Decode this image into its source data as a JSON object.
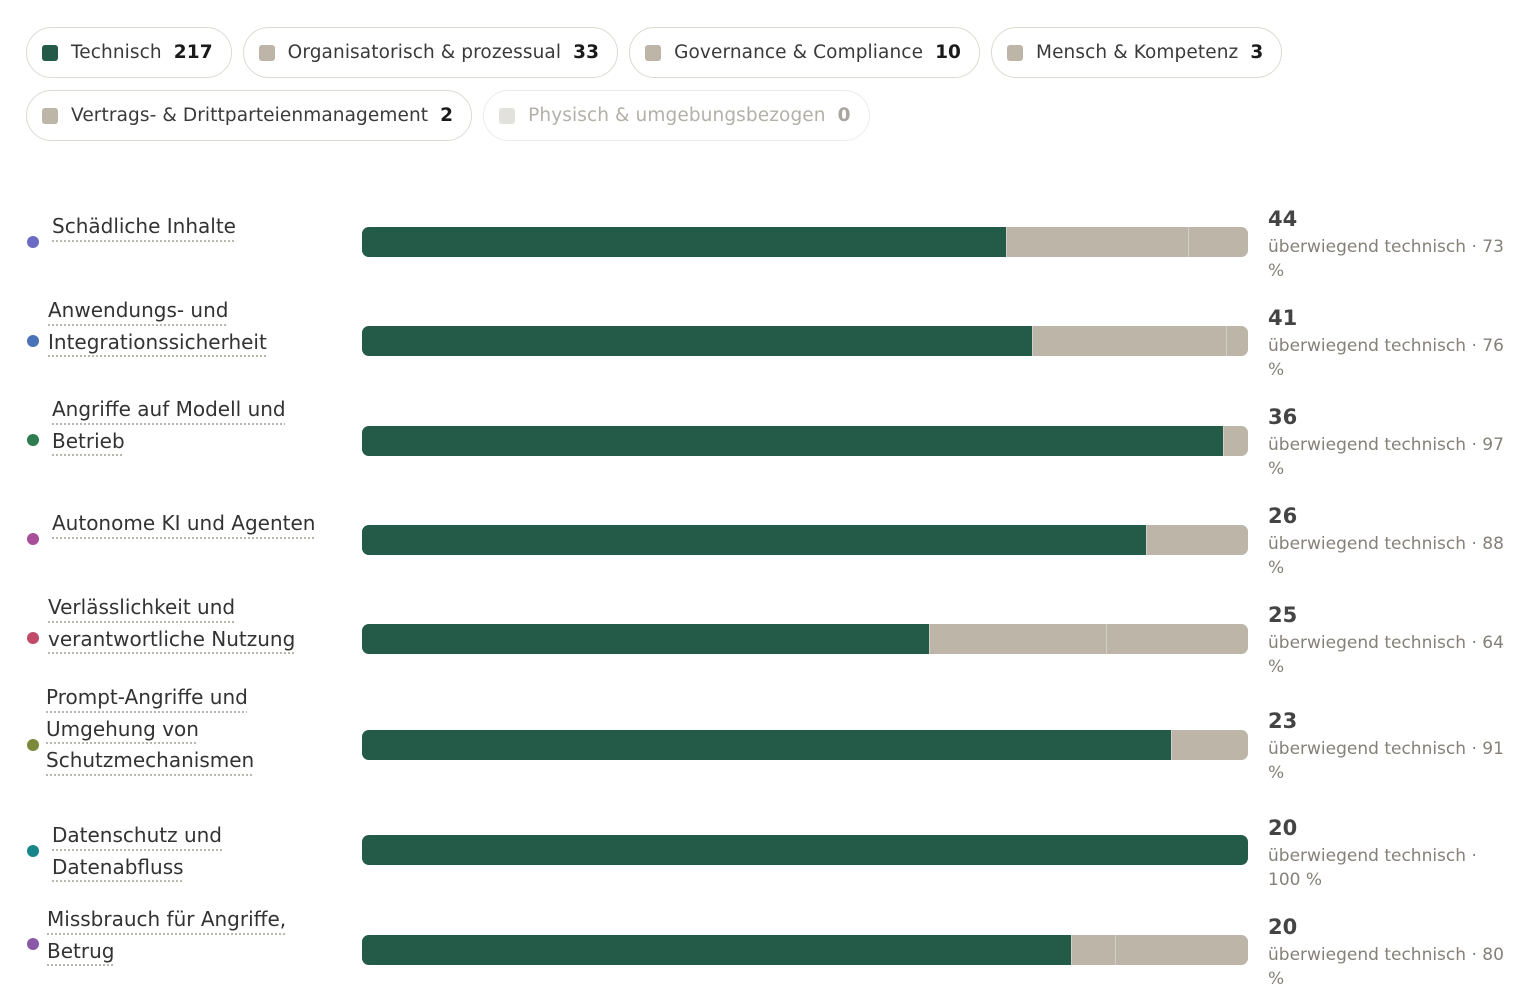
{
  "categories": [
    {
      "label": "Technisch",
      "count": "217",
      "color": "#235a48",
      "active": true
    },
    {
      "label": "Organisatorisch & prozessual",
      "count": "33",
      "color": "#bdb6a8",
      "active": true
    },
    {
      "label": "Governance & Compliance",
      "count": "10",
      "color": "#bdb6a8",
      "active": true
    },
    {
      "label": "Mensch & Kompetenz",
      "count": "3",
      "color": "#bdb6a8",
      "active": true
    },
    {
      "label": "Vertrags- & Drittparteienmanagement",
      "count": "2",
      "color": "#bdb6a8",
      "active": true
    },
    {
      "label": "Physisch & umgebungsbezogen",
      "count": "0",
      "color": "#e3e1dc",
      "active": false
    }
  ],
  "chart_data": {
    "type": "bar",
    "orientation": "horizontal",
    "stacked": true,
    "normalized": true,
    "series_colors": {
      "Technisch": "#235a48",
      "other": "#bdb6a8"
    },
    "rows": [
      {
        "label": "Schädliche Inhalte",
        "dot_color": "#6b6bc4",
        "total": "44",
        "desc": "überwiegend technisch · 73 %",
        "segments": [
          32,
          9,
          3
        ]
      },
      {
        "label": "Anwendungs- und Integrationssicherheit",
        "dot_color": "#4a72b8",
        "total": "41",
        "desc": "überwiegend technisch · 76 %",
        "segments": [
          31,
          9,
          1
        ]
      },
      {
        "label": "Angriffe auf Modell und Betrieb",
        "dot_color": "#2e7d4f",
        "total": "36",
        "desc": "überwiegend technisch · 97 %",
        "segments": [
          35,
          1
        ]
      },
      {
        "label": "Autonome KI und Agenten",
        "dot_color": "#a84f9a",
        "total": "26",
        "desc": "überwiegend technisch · 88 %",
        "segments": [
          23,
          3
        ]
      },
      {
        "label": "Verlässlichkeit und verantwortliche Nutzung",
        "dot_color": "#c04a68",
        "total": "25",
        "desc": "überwiegend technisch · 64 %",
        "segments": [
          16,
          5,
          4
        ]
      },
      {
        "label": "Prompt-Angriffe und Umgehung von Schutzmechanismen",
        "dot_color": "#7a8a3a",
        "total": "23",
        "desc": "überwiegend technisch · 91 %",
        "segments": [
          21,
          2
        ]
      },
      {
        "label": "Datenschutz und Datenabfluss",
        "dot_color": "#17858a",
        "total": "20",
        "desc": "überwiegend technisch · 100 %",
        "segments": [
          20
        ]
      },
      {
        "label": "Missbrauch für Angriffe, Betrug",
        "dot_color": "#8a5aa8",
        "total": "20",
        "desc": "überwiegend technisch · 80 %",
        "segments": [
          16,
          1,
          3
        ]
      }
    ]
  }
}
